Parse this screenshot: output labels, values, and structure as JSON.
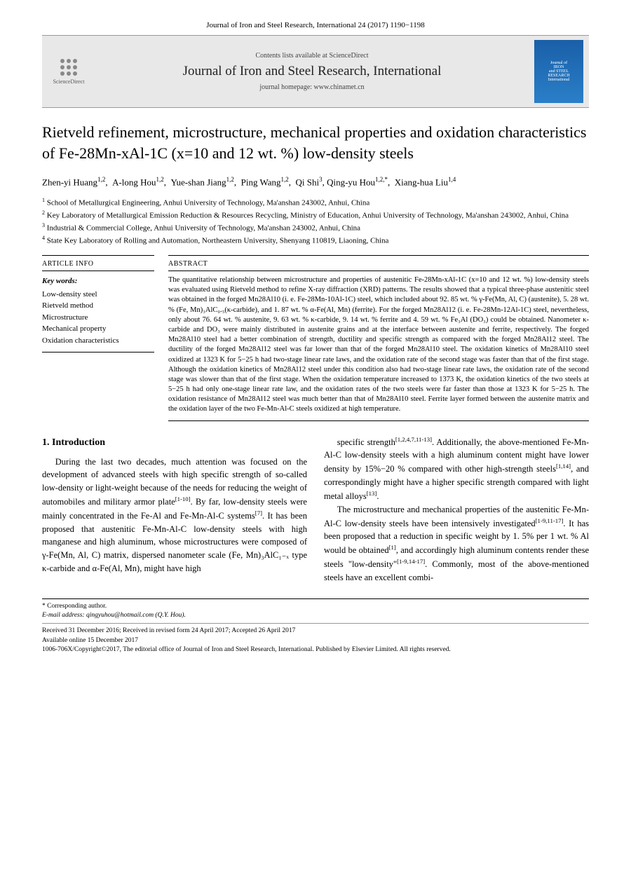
{
  "header_line": "Journal of Iron and Steel Research, International 24 (2017) 1190−1198",
  "banner": {
    "contents": "Contents lists available at ScienceDirect",
    "journal": "Journal of Iron and Steel Research, International",
    "homepage": "journal homepage: www.chinamet.cn",
    "sd_label": "ScienceDirect",
    "cover_line1": "Journal of",
    "cover_line2": "IRON",
    "cover_line3": "and STEEL",
    "cover_line4": "RESEARCH",
    "cover_line5": "International"
  },
  "title": "Rietveld refinement, microstructure, mechanical properties and oxidation characteristics of Fe-28Mn-xAl-1C (x=10 and 12 wt. %) low-density steels",
  "authors_html": "Zhen-yi Huang<sup>1,2</sup>, &nbsp;A-long Hou<sup>1,2</sup>, &nbsp;Yue-shan Jiang<sup>1,2</sup>, &nbsp;Ping Wang<sup>1,2</sup>, &nbsp;Qi Shi<sup>3</sup>, Qing-yu Hou<sup>1,2,*</sup>, &nbsp;Xiang-hua Liu<sup>1,4</sup>",
  "affiliations": [
    "<sup>1</sup> School of Metallurgical Engineering, Anhui University of Technology, Ma'anshan 243002, Anhui, China",
    "<sup>2</sup> Key Laboratory of Metallurgical Emission Reduction & Resources Recycling, Ministry of Education, Anhui University of Technology, Ma'anshan 243002, Anhui, China",
    "<sup>3</sup> Industrial & Commercial College, Anhui University of Technology, Ma'anshan 243002, Anhui, China",
    "<sup>4</sup> State Key Laboratory of Rolling and Automation, Northeastern University, Shenyang 110819, Liaoning, China"
  ],
  "article_info": {
    "heading": "ARTICLE INFO",
    "kw_label": "Key words:",
    "keywords": [
      "Low-density steel",
      "Rietveld method",
      "Microstructure",
      "Mechanical property",
      "Oxidation characteristics"
    ]
  },
  "abstract": {
    "heading": "ABSTRACT",
    "text": "The quantitative relationship between microstructure and properties of austenitic Fe-28Mn-xAl-1C (x=10 and 12 wt. %) low-density steels was evaluated using Rietveld method to refine X-ray diffraction (XRD) patterns. The results showed that a typical three-phase austenitic steel was obtained in the forged Mn28Al10 (i. e. Fe-28Mn-10Al-1C) steel, which included about 92. 85 wt. % γ-Fe(Mn, Al, C) (austenite), 5. 28 wt. % (Fe, Mn)₃AlC₀.₅(κ-carbide), and 1. 87 wt. % α-Fe(Al, Mn) (ferrite). For the forged Mn28Al12 (i. e. Fe-28Mn-12Al-1C) steel, nevertheless, only about 76. 64 wt. % austenite, 9. 63 wt. % κ-carbide, 9. 14 wt. % ferrite and 4. 59 wt. % Fe₃Al (DO₃) could be obtained. Nanometer κ-carbide and DO₃ were mainly distributed in austenite grains and at the interface between austenite and ferrite, respectively. The forged Mn28Al10 steel had a better combination of strength, ductility and specific strength as compared with the forged Mn28Al12 steel. The ductility of the forged Mn28Al12 steel was far lower than that of the forged Mn28Al10 steel. The oxidation kinetics of Mn28Al10 steel oxidized at 1323 K for 5−25 h had two-stage linear rate laws, and the oxidation rate of the second stage was faster than that of the first stage. Although the oxidation kinetics of Mn28Al12 steel under this condition also had two-stage linear rate laws, the oxidation rate of the second stage was slower than that of the first stage. When the oxidation temperature increased to 1373 K, the oxidation kinetics of the two steels at 5−25 h had only one-stage linear rate law, and the oxidation rates of the two steels were far faster than those at 1323 K for 5−25 h. The oxidation resistance of Mn28Al12 steel was much better than that of Mn28Al10 steel. Ferrite layer formed between the austenite matrix and the oxidation layer of the two Fe-Mn-Al-C steels oxidized at high temperature."
  },
  "section_heading": "1. Introduction",
  "col1_p1": "During the last two decades, much attention was focused on the development of advanced steels with high specific strength of so-called low-density or light-weight because of the needs for reducing the weight of automobiles and military armor plate<sup>[1-10]</sup>. By far, low-density steels were mainly concentrated in the Fe-Al and Fe-Mn-Al-C systems<sup>[7]</sup>. It has been proposed that austenitic Fe-Mn-Al-C low-density steels with high manganese and high aluminum, whose microstructures were composed of γ-Fe(Mn, Al, C) matrix, dispersed nanometer scale (Fe, Mn)₃AlC₁₋ₓ type κ-carbide and α-Fe(Al, Mn), might have high",
  "col2_p1": "specific strength<sup>[1,2,4,7,11-13]</sup>. Additionally, the above-mentioned Fe-Mn-Al-C low-density steels with a high aluminum content might have lower density by 15%−20 % compared with other high-strength steels<sup>[1,14]</sup>, and correspondingly might have a higher specific strength compared with light metal alloys<sup>[13]</sup>.",
  "col2_p2": "The microstructure and mechanical properties of the austenitic Fe-Mn-Al-C low-density steels have been intensively investigated<sup>[1-9,11-17]</sup>. It has been proposed that a reduction in specific weight by 1. 5% per 1 wt. % Al would be obtained<sup>[1]</sup>, and accordingly high aluminum contents render these steels \"low-density\"<sup>[1-9,14-17]</sup>. Commonly, most of the above-mentioned steels have an excellent combi-",
  "footer": {
    "corr_label": "* Corresponding author.",
    "email_label": "E-mail address:",
    "email": "qingyuhou@hotmail.com (Q.Y. Hou).",
    "received": "Received 31 December 2016; Received in revised form 24 April 2017; Accepted 26 April 2017",
    "online": "Available online 15 December 2017",
    "copyright": "1006-706X/Copyright©2017, The editorial office of Journal of Iron and Steel Research, International. Published by Elsevier Limited. All rights reserved."
  },
  "colors": {
    "banner_bg": "#e8e8e8",
    "cover_bg": "#1a5fa8",
    "text": "#000000"
  },
  "typography": {
    "title_fontsize": 22,
    "body_fontsize": 12.5,
    "abstract_fontsize": 10.5
  }
}
